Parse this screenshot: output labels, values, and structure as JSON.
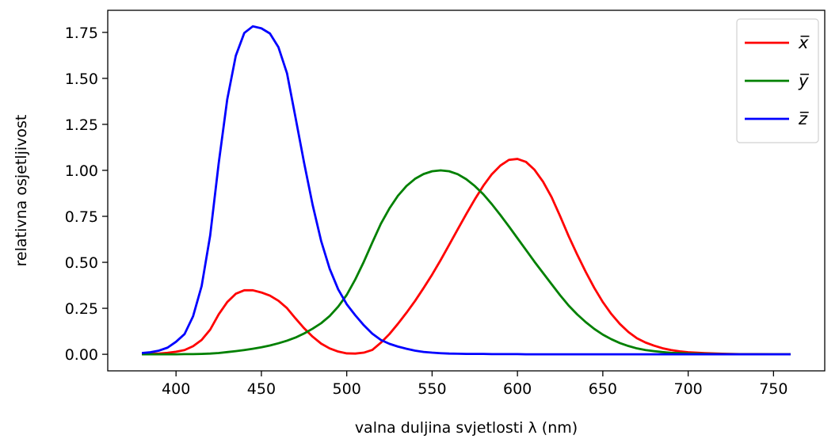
{
  "chart_data": {
    "type": "line",
    "title": "",
    "xlabel": "valna duljina svjetlosti λ (nm)",
    "ylabel": "relativna osjetljivost",
    "xlim": [
      360,
      780
    ],
    "ylim": [
      -0.09,
      1.87
    ],
    "xticks": [
      400,
      450,
      500,
      550,
      600,
      650,
      700,
      750
    ],
    "yticks": [
      0.0,
      0.25,
      0.5,
      0.75,
      1.0,
      1.25,
      1.5,
      1.75
    ],
    "ytick_labels": [
      "0.00",
      "0.25",
      "0.50",
      "0.75",
      "1.00",
      "1.25",
      "1.50",
      "1.75"
    ],
    "grid": false,
    "legend_position": "top-right",
    "x": [
      380,
      385,
      390,
      395,
      400,
      405,
      410,
      415,
      420,
      425,
      430,
      435,
      440,
      445,
      450,
      455,
      460,
      465,
      470,
      475,
      480,
      485,
      490,
      495,
      500,
      505,
      510,
      515,
      520,
      525,
      530,
      535,
      540,
      545,
      550,
      555,
      560,
      565,
      570,
      575,
      580,
      585,
      590,
      595,
      600,
      605,
      610,
      615,
      620,
      625,
      630,
      635,
      640,
      645,
      650,
      655,
      660,
      665,
      670,
      675,
      680,
      685,
      690,
      695,
      700,
      710,
      720,
      730,
      740,
      750,
      760
    ],
    "series": [
      {
        "name": "x̅",
        "color": "#ff0000",
        "values": [
          0.001,
          0.002,
          0.004,
          0.008,
          0.014,
          0.023,
          0.044,
          0.078,
          0.134,
          0.217,
          0.284,
          0.329,
          0.348,
          0.348,
          0.336,
          0.319,
          0.291,
          0.251,
          0.195,
          0.142,
          0.096,
          0.058,
          0.032,
          0.015,
          0.005,
          0.004,
          0.009,
          0.024,
          0.063,
          0.11,
          0.166,
          0.226,
          0.29,
          0.36,
          0.433,
          0.512,
          0.595,
          0.679,
          0.762,
          0.842,
          0.916,
          0.979,
          1.026,
          1.057,
          1.062,
          1.046,
          1.003,
          0.938,
          0.854,
          0.751,
          0.642,
          0.542,
          0.448,
          0.361,
          0.284,
          0.219,
          0.165,
          0.121,
          0.087,
          0.064,
          0.047,
          0.033,
          0.023,
          0.016,
          0.011,
          0.006,
          0.003,
          0.001,
          0.001,
          0.0,
          0.0
        ]
      },
      {
        "name": "y̅",
        "color": "#008000",
        "values": [
          0.0,
          0.0,
          0.0,
          0.0,
          0.0,
          0.001,
          0.001,
          0.002,
          0.004,
          0.007,
          0.012,
          0.017,
          0.023,
          0.03,
          0.038,
          0.048,
          0.06,
          0.074,
          0.091,
          0.113,
          0.139,
          0.169,
          0.208,
          0.259,
          0.323,
          0.407,
          0.503,
          0.608,
          0.71,
          0.793,
          0.862,
          0.915,
          0.954,
          0.98,
          0.995,
          1.0,
          0.995,
          0.979,
          0.952,
          0.915,
          0.87,
          0.816,
          0.757,
          0.695,
          0.631,
          0.567,
          0.503,
          0.442,
          0.381,
          0.321,
          0.265,
          0.217,
          0.175,
          0.138,
          0.107,
          0.082,
          0.061,
          0.045,
          0.032,
          0.023,
          0.017,
          0.012,
          0.008,
          0.006,
          0.004,
          0.002,
          0.001,
          0.0,
          0.0,
          0.0,
          0.0
        ]
      },
      {
        "name": "z̅",
        "color": "#0000ff",
        "values": [
          0.007,
          0.011,
          0.02,
          0.036,
          0.068,
          0.11,
          0.207,
          0.371,
          0.646,
          1.039,
          1.386,
          1.623,
          1.747,
          1.783,
          1.772,
          1.744,
          1.669,
          1.528,
          1.287,
          1.042,
          0.813,
          0.616,
          0.465,
          0.353,
          0.272,
          0.212,
          0.158,
          0.112,
          0.078,
          0.057,
          0.042,
          0.03,
          0.02,
          0.013,
          0.009,
          0.006,
          0.004,
          0.003,
          0.002,
          0.002,
          0.002,
          0.001,
          0.001,
          0.001,
          0.001,
          0.0,
          0.0,
          0.0,
          0.0,
          0.0,
          0.0,
          0.0,
          0.0,
          0.0,
          0.0,
          0.0,
          0.0,
          0.0,
          0.0,
          0.0,
          0.0,
          0.0,
          0.0,
          0.0,
          0.0,
          0.0,
          0.0,
          0.0,
          0.0,
          0.0,
          0.0
        ]
      }
    ]
  }
}
